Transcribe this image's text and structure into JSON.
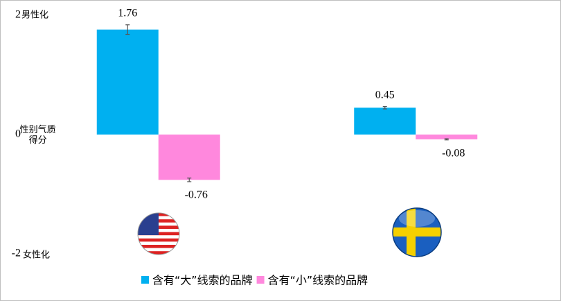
{
  "chart_data": {
    "type": "bar",
    "y_axis_label_top": "男性化",
    "y_axis_label": "性别气质得分",
    "y_axis_label_bottom": "女性化",
    "categories": [
      null,
      null
    ],
    "series": [
      {
        "name": "含有“大”线索的品牌",
        "color": "#00b0f0",
        "values": [
          1.76,
          0.45
        ],
        "errors": [
          0.08,
          0.02
        ]
      },
      {
        "name": "含有“小”线索的品牌",
        "color": "#ff88dd",
        "values": [
          -0.76,
          -0.08
        ],
        "errors": [
          0.03,
          0.01
        ]
      }
    ],
    "ylim": [
      -2,
      2
    ],
    "yticks": [
      -2,
      0,
      2
    ],
    "grid": false
  }
}
